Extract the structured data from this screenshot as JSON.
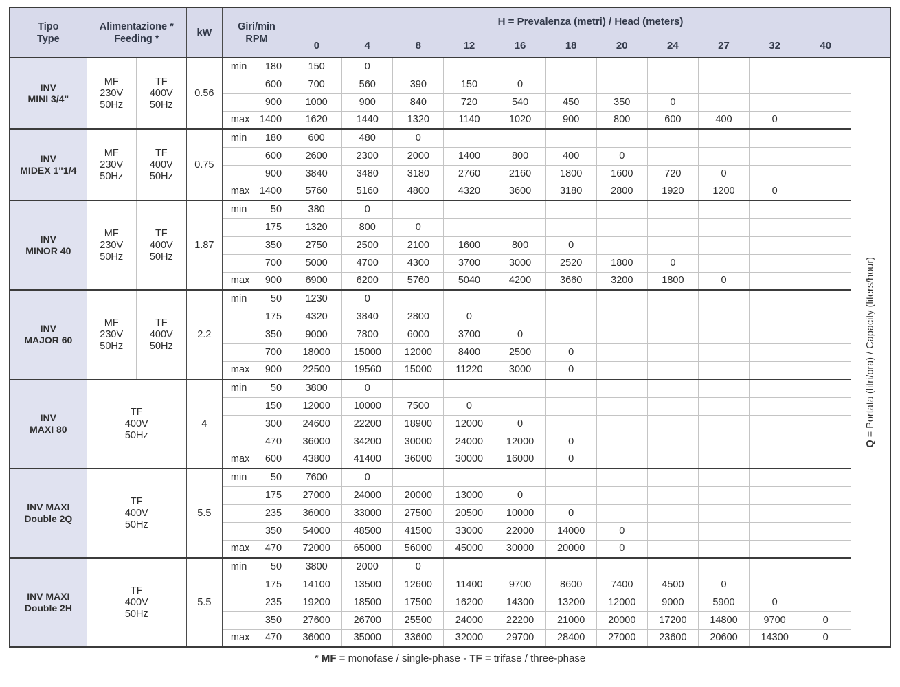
{
  "table": {
    "columns": {
      "tipo": "Tipo\nType",
      "feeding": "Alimentazione *\nFeeding *",
      "kw": "kW",
      "rpm": "Giri/min\nRPM",
      "head_title": {
        "bold": "H",
        "rest": " = Prevalenza (metri) / Head (meters)"
      },
      "head_values": [
        "0",
        "4",
        "8",
        "12",
        "16",
        "18",
        "20",
        "24",
        "27",
        "32",
        "40"
      ]
    },
    "q_label": {
      "bold": "Q",
      "rest": " = Portata (litri/ora) / Capacity (liters/hour)"
    },
    "groups": [
      {
        "name": "INV\nMINI 3/4\"",
        "feeding": [
          "MF\n230V\n50Hz",
          "TF\n400V\n50Hz"
        ],
        "kw": "0.56",
        "rows": [
          {
            "label": "min",
            "rpm": "180",
            "values": [
              "150",
              "0"
            ]
          },
          {
            "label": "",
            "rpm": "600",
            "values": [
              "700",
              "560",
              "390",
              "150",
              "0"
            ]
          },
          {
            "label": "",
            "rpm": "900",
            "values": [
              "1000",
              "900",
              "840",
              "720",
              "540",
              "450",
              "350",
              "0"
            ]
          },
          {
            "label": "max",
            "rpm": "1400",
            "values": [
              "1620",
              "1440",
              "1320",
              "1140",
              "1020",
              "900",
              "800",
              "600",
              "400",
              "0"
            ]
          }
        ]
      },
      {
        "name": "INV\nMIDEX 1\"1/4",
        "feeding": [
          "MF\n230V\n50Hz",
          "TF\n400V\n50Hz"
        ],
        "kw": "0.75",
        "rows": [
          {
            "label": "min",
            "rpm": "180",
            "values": [
              "600",
              "480",
              "0"
            ]
          },
          {
            "label": "",
            "rpm": "600",
            "values": [
              "2600",
              "2300",
              "2000",
              "1400",
              "800",
              "400",
              "0"
            ]
          },
          {
            "label": "",
            "rpm": "900",
            "values": [
              "3840",
              "3480",
              "3180",
              "2760",
              "2160",
              "1800",
              "1600",
              "720",
              "0"
            ]
          },
          {
            "label": "max",
            "rpm": "1400",
            "values": [
              "5760",
              "5160",
              "4800",
              "4320",
              "3600",
              "3180",
              "2800",
              "1920",
              "1200",
              "0"
            ]
          }
        ]
      },
      {
        "name": "INV\nMINOR 40",
        "feeding": [
          "MF\n230V\n50Hz",
          "TF\n400V\n50Hz"
        ],
        "kw": "1.87",
        "rows": [
          {
            "label": "min",
            "rpm": "50",
            "values": [
              "380",
              "0"
            ]
          },
          {
            "label": "",
            "rpm": "175",
            "values": [
              "1320",
              "800",
              "0"
            ]
          },
          {
            "label": "",
            "rpm": "350",
            "values": [
              "2750",
              "2500",
              "2100",
              "1600",
              "800",
              "0"
            ]
          },
          {
            "label": "",
            "rpm": "700",
            "values": [
              "5000",
              "4700",
              "4300",
              "3700",
              "3000",
              "2520",
              "1800",
              "0"
            ]
          },
          {
            "label": "max",
            "rpm": "900",
            "values": [
              "6900",
              "6200",
              "5760",
              "5040",
              "4200",
              "3660",
              "3200",
              "1800",
              "0"
            ]
          }
        ]
      },
      {
        "name": "INV\nMAJOR 60",
        "feeding": [
          "MF\n230V\n50Hz",
          "TF\n400V\n50Hz"
        ],
        "kw": "2.2",
        "rows": [
          {
            "label": "min",
            "rpm": "50",
            "values": [
              "1230",
              "0"
            ]
          },
          {
            "label": "",
            "rpm": "175",
            "values": [
              "4320",
              "3840",
              "2800",
              "0"
            ]
          },
          {
            "label": "",
            "rpm": "350",
            "values": [
              "9000",
              "7800",
              "6000",
              "3700",
              "0"
            ]
          },
          {
            "label": "",
            "rpm": "700",
            "values": [
              "18000",
              "15000",
              "12000",
              "8400",
              "2500",
              "0"
            ]
          },
          {
            "label": "max",
            "rpm": "900",
            "values": [
              "22500",
              "19560",
              "15000",
              "11220",
              "3000",
              "0"
            ]
          }
        ]
      },
      {
        "name": "INV\nMAXI 80",
        "feeding": [
          "TF\n400V\n50Hz"
        ],
        "kw": "4",
        "rows": [
          {
            "label": "min",
            "rpm": "50",
            "values": [
              "3800",
              "0"
            ]
          },
          {
            "label": "",
            "rpm": "150",
            "values": [
              "12000",
              "10000",
              "7500",
              "0"
            ]
          },
          {
            "label": "",
            "rpm": "300",
            "values": [
              "24600",
              "22200",
              "18900",
              "12000",
              "0"
            ]
          },
          {
            "label": "",
            "rpm": "470",
            "values": [
              "36000",
              "34200",
              "30000",
              "24000",
              "12000",
              "0"
            ]
          },
          {
            "label": "max",
            "rpm": "600",
            "values": [
              "43800",
              "41400",
              "36000",
              "30000",
              "16000",
              "0"
            ]
          }
        ]
      },
      {
        "name": "INV MAXI\nDouble 2Q",
        "feeding": [
          "TF\n400V\n50Hz"
        ],
        "kw": "5.5",
        "rows": [
          {
            "label": "min",
            "rpm": "50",
            "values": [
              "7600",
              "0"
            ]
          },
          {
            "label": "",
            "rpm": "175",
            "values": [
              "27000",
              "24000",
              "20000",
              "13000",
              "0"
            ]
          },
          {
            "label": "",
            "rpm": "235",
            "values": [
              "36000",
              "33000",
              "27500",
              "20500",
              "10000",
              "0"
            ]
          },
          {
            "label": "",
            "rpm": "350",
            "values": [
              "54000",
              "48500",
              "41500",
              "33000",
              "22000",
              "14000",
              "0"
            ]
          },
          {
            "label": "max",
            "rpm": "470",
            "values": [
              "72000",
              "65000",
              "56000",
              "45000",
              "30000",
              "20000",
              "0"
            ]
          }
        ]
      },
      {
        "name": "INV MAXI\nDouble 2H",
        "feeding": [
          "TF\n400V\n50Hz"
        ],
        "kw": "5.5",
        "rows": [
          {
            "label": "min",
            "rpm": "50",
            "values": [
              "3800",
              "2000",
              "0"
            ]
          },
          {
            "label": "",
            "rpm": "175",
            "values": [
              "14100",
              "13500",
              "12600",
              "11400",
              "9700",
              "8600",
              "7400",
              "4500",
              "0"
            ]
          },
          {
            "label": "",
            "rpm": "235",
            "values": [
              "19200",
              "18500",
              "17500",
              "16200",
              "14300",
              "13200",
              "12000",
              "9000",
              "5900",
              "0"
            ]
          },
          {
            "label": "",
            "rpm": "350",
            "values": [
              "27600",
              "26700",
              "25500",
              "24000",
              "22200",
              "21000",
              "20000",
              "17200",
              "14800",
              "9700",
              "0"
            ]
          },
          {
            "label": "max",
            "rpm": "470",
            "values": [
              "36000",
              "35000",
              "33600",
              "32000",
              "29700",
              "28400",
              "27000",
              "23600",
              "20600",
              "14300",
              "0"
            ]
          }
        ]
      }
    ]
  },
  "footnote": {
    "star": "* ",
    "mf": "MF",
    "mid": " = monofase / single-phase - ",
    "tf": "TF",
    "rest": " = trifase / three-phase"
  },
  "colors": {
    "header_bg": "#d8daeb",
    "tipo_bg": "#e0e2f0",
    "border_dark": "#3b3b3b",
    "border_light": "#c4c4c4"
  }
}
